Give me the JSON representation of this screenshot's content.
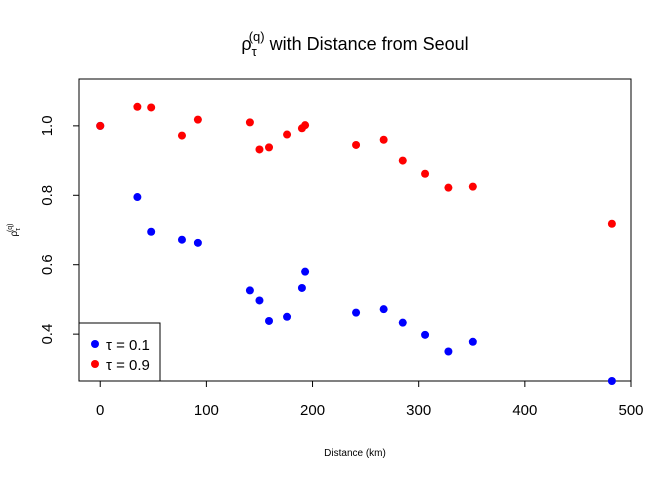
{
  "chart_data": {
    "type": "scatter",
    "title": {
      "base": "ρ",
      "subscript": "τ",
      "superscript": "(q)",
      "rest": " with Distance from Seoul"
    },
    "xlabel": "Distance (km)",
    "ylabel": {
      "base": "ρ",
      "subscript": "τ",
      "superscript": "(q)"
    },
    "xlim": [
      -20,
      500
    ],
    "ylim": [
      0.265,
      1.135
    ],
    "x_ticks": [
      0,
      100,
      200,
      300,
      400,
      500
    ],
    "y_ticks": [
      0.4,
      0.6,
      0.8,
      1.0
    ],
    "x_tick_labels": [
      "0",
      "100",
      "200",
      "300",
      "400",
      "500"
    ],
    "y_tick_labels": [
      "0.4",
      "0.6",
      "0.8",
      "1.0"
    ],
    "grid": false,
    "legend_position": "bottom-left",
    "series": [
      {
        "name": "τ = 0.1",
        "color": "#0000ff",
        "points": [
          [
            0,
            1.0
          ],
          [
            35,
            0.795
          ],
          [
            48,
            0.695
          ],
          [
            77,
            0.672
          ],
          [
            92,
            0.663
          ],
          [
            141,
            0.526
          ],
          [
            150,
            0.497
          ],
          [
            159,
            0.438
          ],
          [
            176,
            0.45
          ],
          [
            190,
            0.533
          ],
          [
            193,
            0.58
          ],
          [
            241,
            0.462
          ],
          [
            267,
            0.472
          ],
          [
            285,
            0.433
          ],
          [
            306,
            0.398
          ],
          [
            328,
            0.35
          ],
          [
            351,
            0.378
          ],
          [
            482,
            0.265
          ]
        ]
      },
      {
        "name": "τ = 0.9",
        "color": "#ff0000",
        "points": [
          [
            0,
            1.0
          ],
          [
            35,
            1.055
          ],
          [
            48,
            1.053
          ],
          [
            77,
            0.972
          ],
          [
            92,
            1.018
          ],
          [
            141,
            1.01
          ],
          [
            150,
            0.932
          ],
          [
            159,
            0.938
          ],
          [
            176,
            0.975
          ],
          [
            190,
            0.993
          ],
          [
            193,
            1.002
          ],
          [
            241,
            0.945
          ],
          [
            267,
            0.96
          ],
          [
            285,
            0.9
          ],
          [
            306,
            0.862
          ],
          [
            328,
            0.822
          ],
          [
            351,
            0.825
          ],
          [
            482,
            0.718
          ]
        ]
      }
    ]
  }
}
